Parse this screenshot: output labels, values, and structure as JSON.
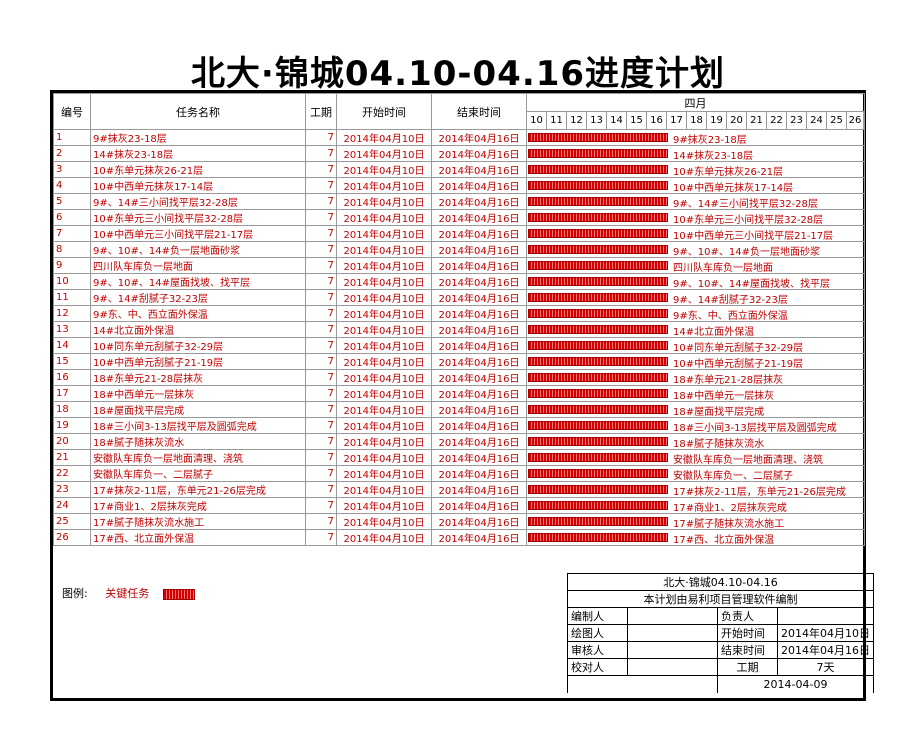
{
  "title": "北大·锦城04.10-04.16进度计划",
  "headers": {
    "no": "编号",
    "name": "任务名称",
    "duration": "工期",
    "start": "开始时间",
    "end": "结束时间",
    "month": "四月"
  },
  "days": [
    "10",
    "11",
    "12",
    "13",
    "14",
    "15",
    "16",
    "17",
    "18",
    "19",
    "20",
    "21",
    "22",
    "23",
    "24",
    "25",
    "26"
  ],
  "tasks": [
    {
      "no": "1",
      "name": "9#抹灰23-18层",
      "dur": "7",
      "start": "2014年04月10日",
      "end": "2014年04月16日"
    },
    {
      "no": "2",
      "name": "14#抹灰23-18层",
      "dur": "7",
      "start": "2014年04月10日",
      "end": "2014年04月16日"
    },
    {
      "no": "3",
      "name": "10#东单元抹灰26-21层",
      "dur": "7",
      "start": "2014年04月10日",
      "end": "2014年04月16日"
    },
    {
      "no": "4",
      "name": "10#中西单元抹灰17-14层",
      "dur": "7",
      "start": "2014年04月10日",
      "end": "2014年04月16日"
    },
    {
      "no": "5",
      "name": "9#、14#三小间找平层32-28层",
      "dur": "7",
      "start": "2014年04月10日",
      "end": "2014年04月16日"
    },
    {
      "no": "6",
      "name": "10#东单元三小间找平层32-28层",
      "dur": "7",
      "start": "2014年04月10日",
      "end": "2014年04月16日"
    },
    {
      "no": "7",
      "name": "10#中西单元三小间找平层21-17层",
      "dur": "7",
      "start": "2014年04月10日",
      "end": "2014年04月16日"
    },
    {
      "no": "8",
      "name": "9#、10#、14#负一层地面砂浆",
      "dur": "7",
      "start": "2014年04月10日",
      "end": "2014年04月16日"
    },
    {
      "no": "9",
      "name": "四川队车库负一层地面",
      "dur": "7",
      "start": "2014年04月10日",
      "end": "2014年04月16日"
    },
    {
      "no": "10",
      "name": "9#、10#、14#屋面找坡、找平层",
      "dur": "7",
      "start": "2014年04月10日",
      "end": "2014年04月16日"
    },
    {
      "no": "11",
      "name": "9#、14#刮腻子32-23层",
      "dur": "7",
      "start": "2014年04月10日",
      "end": "2014年04月16日"
    },
    {
      "no": "12",
      "name": "9#东、中、西立面外保温",
      "dur": "7",
      "start": "2014年04月10日",
      "end": "2014年04月16日"
    },
    {
      "no": "13",
      "name": "14#北立面外保温",
      "dur": "7",
      "start": "2014年04月10日",
      "end": "2014年04月16日"
    },
    {
      "no": "14",
      "name": "10#同东单元刮腻子32-29层",
      "dur": "7",
      "start": "2014年04月10日",
      "end": "2014年04月16日"
    },
    {
      "no": "15",
      "name": "10#中西单元刮腻子21-19层",
      "dur": "7",
      "start": "2014年04月10日",
      "end": "2014年04月16日"
    },
    {
      "no": "16",
      "name": "18#东单元21-28层抹灰",
      "dur": "7",
      "start": "2014年04月10日",
      "end": "2014年04月16日"
    },
    {
      "no": "17",
      "name": "18#中西单元一层抹灰",
      "dur": "7",
      "start": "2014年04月10日",
      "end": "2014年04月16日"
    },
    {
      "no": "18",
      "name": "18#屋面找平层完成",
      "dur": "7",
      "start": "2014年04月10日",
      "end": "2014年04月16日"
    },
    {
      "no": "19",
      "name": "18#三小间3-13层找平层及圆弧完成",
      "dur": "7",
      "start": "2014年04月10日",
      "end": "2014年04月16日"
    },
    {
      "no": "20",
      "name": "18#腻子随抹灰流水",
      "dur": "7",
      "start": "2014年04月10日",
      "end": "2014年04月16日"
    },
    {
      "no": "21",
      "name": "安徽队车库负一层地面清理、浇筑",
      "dur": "7",
      "start": "2014年04月10日",
      "end": "2014年04月16日"
    },
    {
      "no": "22",
      "name": "安徽队车库负一、二层腻子",
      "dur": "7",
      "start": "2014年04月10日",
      "end": "2014年04月16日"
    },
    {
      "no": "23",
      "name": "17#抹灰2-11层，东单元21-26层完成",
      "dur": "7",
      "start": "2014年04月10日",
      "end": "2014年04月16日"
    },
    {
      "no": "24",
      "name": "17#商业1、2层抹灰完成",
      "dur": "7",
      "start": "2014年04月10日",
      "end": "2014年04月16日"
    },
    {
      "no": "25",
      "name": "17#腻子随抹灰流水施工",
      "dur": "7",
      "start": "2014年04月10日",
      "end": "2014年04月16日"
    },
    {
      "no": "26",
      "name": "17#西、北立面外保温",
      "dur": "7",
      "start": "2014年04月10日",
      "end": "2014年04月16日"
    }
  ],
  "legend": {
    "label": "图例:",
    "key": "关键任务"
  },
  "info": {
    "project": "北大·锦城04.10-04.16",
    "software": "本计划由易利项目管理软件编制",
    "compiler": "编制人",
    "owner": "负责人",
    "drawer": "绘图人",
    "start_label": "开始时间",
    "start_value": "2014年04月10日",
    "reviewer": "审核人",
    "end_label": "结束时间",
    "end_value": "2014年04月16日",
    "checker": "校对人",
    "duration_label": "工期",
    "duration_value": "7天",
    "date": "2014-04-09"
  },
  "colors": {
    "task_text": "#c00000",
    "bar": "#d40000",
    "border": "#000000"
  }
}
